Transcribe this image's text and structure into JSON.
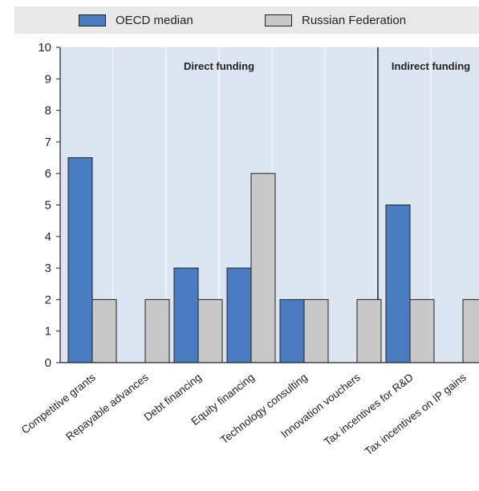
{
  "legend": {
    "items": [
      {
        "label": "OECD median",
        "color": "#4a7cc2"
      },
      {
        "label": "Russian Federation",
        "color": "#c8c8c8"
      }
    ]
  },
  "groups": [
    {
      "label": "Direct funding",
      "categories": 6
    },
    {
      "label": "Indirect funding",
      "categories": 2
    }
  ],
  "chart_data": {
    "type": "bar",
    "categories": [
      "Competitive grants",
      "Repayable advances",
      "Debt financing",
      "Equity financing",
      "Technology consulting",
      "Innovation vouchers",
      "Tax incentives for R&D",
      "Tax incentives on IP gains"
    ],
    "series": [
      {
        "name": "OECD median",
        "color": "#4a7cc2",
        "values": [
          6.5,
          0,
          3,
          3,
          2,
          0,
          5,
          0
        ]
      },
      {
        "name": "Russian Federation",
        "color": "#c8c8c8",
        "values": [
          2,
          2,
          2,
          6,
          2,
          2,
          2,
          2
        ]
      }
    ],
    "ylim": [
      0,
      10
    ],
    "yticks": [
      0,
      1,
      2,
      3,
      4,
      5,
      6,
      7,
      8,
      9,
      10
    ],
    "grid": true,
    "plot_background": "#dce6f2",
    "legend_position": "top"
  }
}
